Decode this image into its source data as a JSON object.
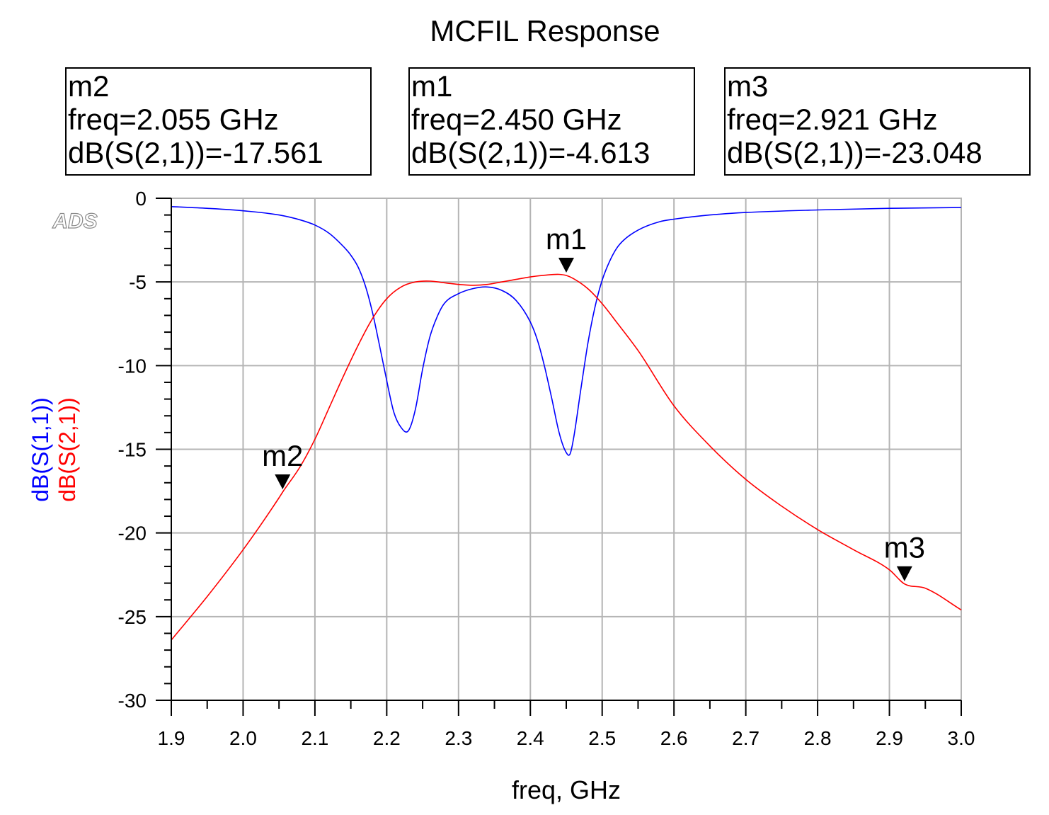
{
  "chart_data": {
    "type": "line",
    "title": "MCFIL Response",
    "xlabel": "freq, GHz",
    "xlim": [
      1.9,
      3.0
    ],
    "ylim": [
      -30,
      0
    ],
    "x_ticks": [
      "1.9",
      "2.0",
      "2.1",
      "2.2",
      "2.3",
      "2.4",
      "2.5",
      "2.6",
      "2.7",
      "2.8",
      "2.9",
      "3.0"
    ],
    "y_ticks": [
      "0",
      "-5",
      "-10",
      "-15",
      "-20",
      "-25",
      "-30"
    ],
    "grid": true,
    "watermark": "ADS",
    "series": [
      {
        "name": "dB(S(1,1))",
        "color": "#0000ff",
        "x": [
          1.9,
          1.95,
          2.0,
          2.05,
          2.08,
          2.1,
          2.12,
          2.14,
          2.15,
          2.16,
          2.17,
          2.18,
          2.19,
          2.2,
          2.21,
          2.22,
          2.23,
          2.24,
          2.25,
          2.26,
          2.27,
          2.28,
          2.3,
          2.32,
          2.34,
          2.36,
          2.38,
          2.4,
          2.41,
          2.42,
          2.43,
          2.44,
          2.45,
          2.455,
          2.46,
          2.47,
          2.48,
          2.49,
          2.5,
          2.51,
          2.52,
          2.53,
          2.55,
          2.58,
          2.6,
          2.65,
          2.7,
          2.8,
          2.9,
          3.0
        ],
        "y": [
          -0.5,
          -0.6,
          -0.75,
          -1.0,
          -1.3,
          -1.6,
          -2.1,
          -2.9,
          -3.4,
          -4.1,
          -5.2,
          -6.8,
          -8.8,
          -10.9,
          -12.8,
          -13.7,
          -13.9,
          -12.6,
          -10.2,
          -8.3,
          -7.1,
          -6.3,
          -5.7,
          -5.4,
          -5.3,
          -5.5,
          -6.1,
          -7.4,
          -8.5,
          -10.1,
          -12.0,
          -14.0,
          -15.2,
          -15.3,
          -14.4,
          -11.5,
          -8.7,
          -6.5,
          -4.9,
          -3.8,
          -3.0,
          -2.5,
          -1.9,
          -1.4,
          -1.25,
          -1.0,
          -0.85,
          -0.7,
          -0.6,
          -0.55
        ]
      },
      {
        "name": "dB(S(2,1))",
        "color": "#ff0000",
        "x": [
          1.9,
          1.95,
          2.0,
          2.05,
          2.055,
          2.08,
          2.1,
          2.12,
          2.14,
          2.16,
          2.18,
          2.2,
          2.22,
          2.24,
          2.26,
          2.28,
          2.3,
          2.32,
          2.34,
          2.36,
          2.38,
          2.4,
          2.42,
          2.44,
          2.45,
          2.46,
          2.48,
          2.5,
          2.52,
          2.55,
          2.6,
          2.65,
          2.7,
          2.75,
          2.8,
          2.85,
          2.9,
          2.921,
          2.95,
          3.0
        ],
        "y": [
          -26.4,
          -23.8,
          -21.0,
          -17.9,
          -17.561,
          -16.0,
          -14.4,
          -12.5,
          -10.6,
          -8.8,
          -7.2,
          -6.0,
          -5.3,
          -5.0,
          -4.95,
          -5.05,
          -5.15,
          -5.2,
          -5.15,
          -5.0,
          -4.85,
          -4.7,
          -4.6,
          -4.55,
          -4.613,
          -4.8,
          -5.4,
          -6.3,
          -7.4,
          -9.1,
          -12.4,
          -14.8,
          -16.8,
          -18.4,
          -19.8,
          -21.0,
          -22.2,
          -23.048,
          -23.3,
          -24.6
        ]
      }
    ],
    "markers": [
      {
        "name": "m2",
        "freq": 2.055,
        "value": -17.561,
        "series": "dB(S(2,1))",
        "lines": [
          "m2",
          "freq=2.055 GHz",
          "dB(S(2,1))=-17.561"
        ]
      },
      {
        "name": "m1",
        "freq": 2.45,
        "value": -4.613,
        "series": "dB(S(2,1))",
        "lines": [
          "m1",
          "freq=2.450 GHz",
          "dB(S(2,1))=-4.613"
        ]
      },
      {
        "name": "m3",
        "freq": 2.921,
        "value": -23.048,
        "series": "dB(S(2,1))",
        "lines": [
          "m3",
          "freq=2.921 GHz",
          "dB(S(2,1))=-23.048"
        ]
      }
    ]
  }
}
